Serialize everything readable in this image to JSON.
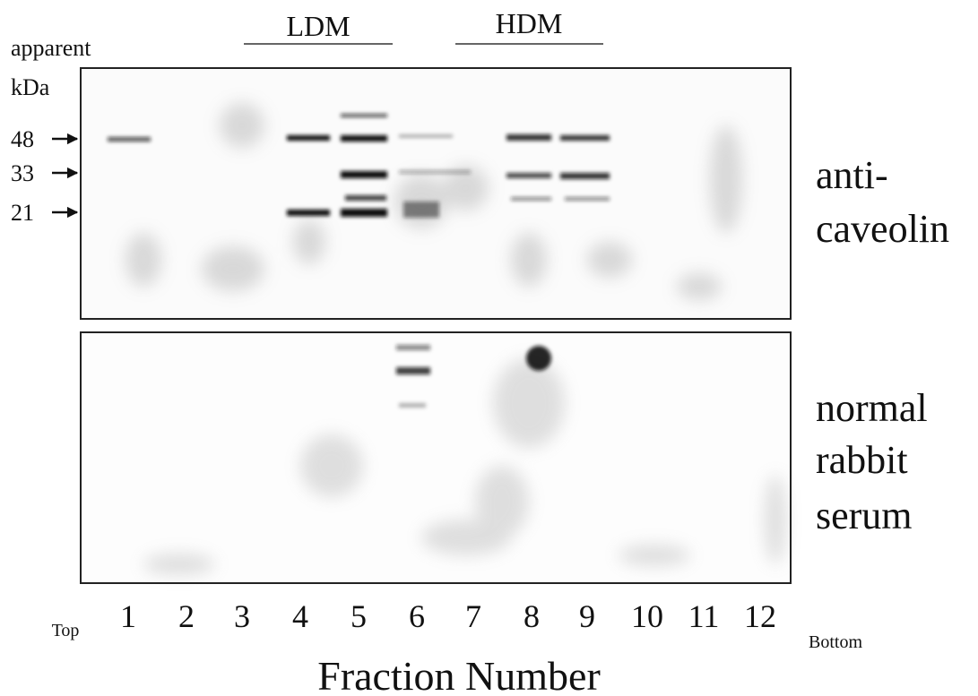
{
  "header": {
    "ldm": "LDM",
    "hdm": "HDM"
  },
  "marker_label": {
    "line1": "apparent",
    "line2": "kDa"
  },
  "markers": [
    "48",
    "33",
    "21"
  ],
  "panels": [
    {
      "label_lines": [
        "anti-",
        "caveolin"
      ]
    },
    {
      "label_lines": [
        "normal",
        "rabbit",
        "serum"
      ]
    }
  ],
  "fractions": [
    "1",
    "2",
    "3",
    "4",
    "5",
    "6",
    "7",
    "8",
    "9",
    "10",
    "11",
    "12"
  ],
  "top": "Top",
  "bottom": "Bottom",
  "x_label": "Fraction Number"
}
